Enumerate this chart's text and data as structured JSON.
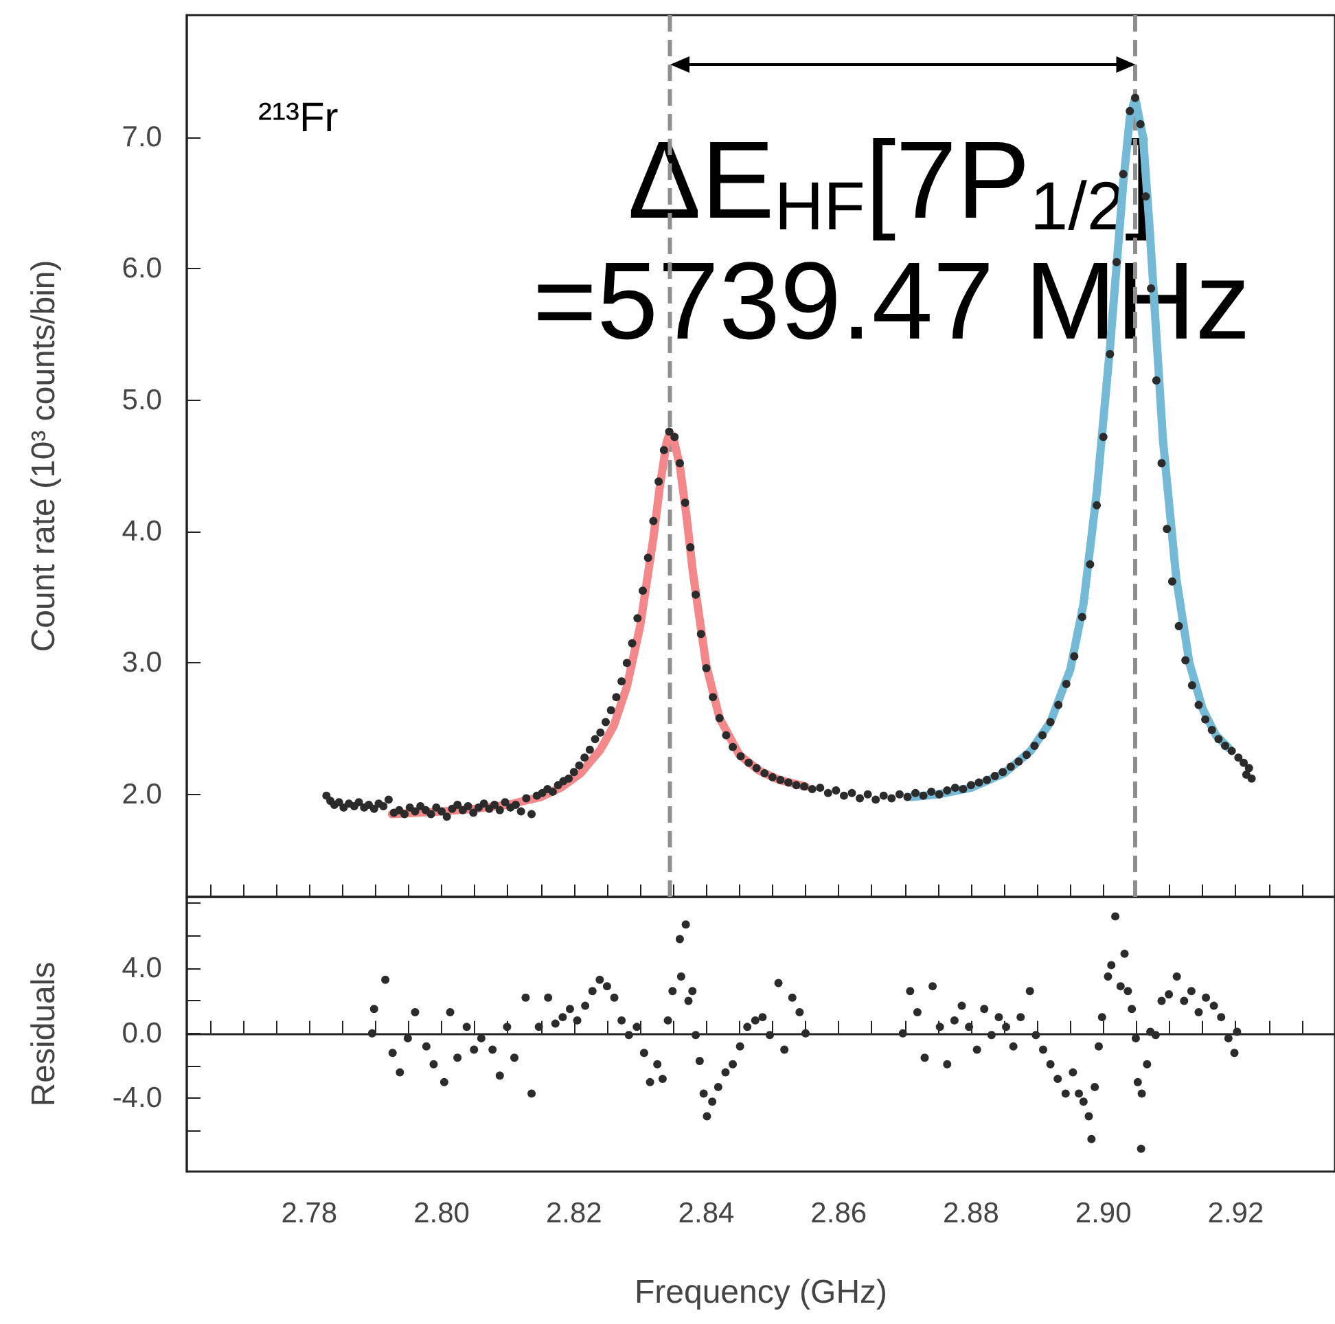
{
  "chart_data": [
    {
      "type": "scatter",
      "ylabel": "Count rate (10³ counts/bin)",
      "annotations": [
        "²¹³Fr",
        "ΔE$_{HF}$[7P$_{1/2}$]\n=5739.47 MHz"
      ],
      "xlim": [
        2.7615,
        2.935
      ],
      "ylim": [
        1.22,
        7.93
      ],
      "yticks": [
        {
          "value": 2,
          "label": "2.0"
        },
        {
          "value": 3,
          "label": "3.0"
        },
        {
          "value": 4,
          "label": "4.0"
        },
        {
          "value": 5,
          "label": "5.0"
        },
        {
          "value": 6,
          "label": "6.0"
        },
        {
          "value": 7,
          "label": "7.0"
        }
      ],
      "xticks": [
        {
          "value": 2.765,
          "label": null
        },
        {
          "value": 2.77,
          "label": null
        },
        {
          "value": 2.775,
          "label": null
        },
        {
          "value": 2.78,
          "label": null
        },
        {
          "value": 2.785,
          "label": null
        },
        {
          "value": 2.79,
          "label": null
        },
        {
          "value": 2.795,
          "label": null
        },
        {
          "value": 2.8,
          "label": null
        },
        {
          "value": 2.805,
          "label": null
        },
        {
          "value": 2.81,
          "label": null
        },
        {
          "value": 2.815,
          "label": null
        },
        {
          "value": 2.82,
          "label": null
        },
        {
          "value": 2.825,
          "label": null
        },
        {
          "value": 2.83,
          "label": null
        },
        {
          "value": 2.835,
          "label": null
        },
        {
          "value": 2.84,
          "label": null
        },
        {
          "value": 2.845,
          "label": null
        },
        {
          "value": 2.85,
          "label": null
        },
        {
          "value": 2.855,
          "label": null
        },
        {
          "value": 2.86,
          "label": null
        },
        {
          "value": 2.865,
          "label": null
        },
        {
          "value": 2.87,
          "label": null
        },
        {
          "value": 2.875,
          "label": null
        },
        {
          "value": 2.88,
          "label": null
        },
        {
          "value": 2.885,
          "label": null
        },
        {
          "value": 2.89,
          "label": null
        },
        {
          "value": 2.895,
          "label": null
        },
        {
          "value": 2.9,
          "label": null
        },
        {
          "value": 2.905,
          "label": null
        },
        {
          "value": 2.91,
          "label": null
        },
        {
          "value": 2.915,
          "label": null
        },
        {
          "value": 2.92,
          "label": null
        },
        {
          "value": 2.925,
          "label": null
        },
        {
          "value": 2.93,
          "label": null
        }
      ],
      "tick_labels": "y",
      "marker": "circle",
      "ref_lines": [
        {
          "axis": "x",
          "value": 2.8345,
          "color": "#8f8f8f",
          "line_style": "dashed"
        },
        {
          "axis": "x",
          "value": 2.9048,
          "color": "#8f8f8f",
          "line_style": "dashed"
        }
      ],
      "series": [
        {
          "type": "line",
          "color": "#f4878a",
          "marker": "none",
          "x": [
            2.7925,
            2.8,
            2.805,
            2.81,
            2.815,
            2.818,
            2.821,
            2.824,
            2.826,
            2.828,
            2.83,
            2.832,
            2.833,
            2.834,
            2.8345,
            2.835,
            2.836,
            2.837,
            2.838,
            2.84,
            2.842,
            2.845,
            2.848,
            2.851,
            2.855
          ],
          "values": [
            1.85,
            1.87,
            1.89,
            1.92,
            1.98,
            2.05,
            2.16,
            2.34,
            2.52,
            2.82,
            3.28,
            3.95,
            4.35,
            4.68,
            4.75,
            4.72,
            4.5,
            4.12,
            3.68,
            2.98,
            2.58,
            2.3,
            2.18,
            2.11,
            2.06
          ]
        },
        {
          "type": "line",
          "color": "#74b9d6",
          "marker": "none",
          "x": [
            2.871,
            2.875,
            2.88,
            2.885,
            2.889,
            2.892,
            2.895,
            2.897,
            2.899,
            2.901,
            2.903,
            2.904,
            2.9048,
            2.906,
            2.907,
            2.909,
            2.911,
            2.913,
            2.915,
            2.917,
            2.919
          ],
          "values": [
            1.98,
            2.0,
            2.05,
            2.16,
            2.33,
            2.55,
            2.95,
            3.45,
            4.3,
            5.4,
            6.65,
            7.15,
            7.3,
            7.0,
            6.3,
            4.7,
            3.65,
            3.0,
            2.65,
            2.45,
            2.35
          ]
        },
        {
          "color": "#2b2b2b",
          "x": [
            2.7826,
            2.7832,
            2.7838,
            2.7845,
            2.7852,
            2.786,
            2.7868,
            2.7875,
            2.7883,
            2.789,
            2.7898,
            2.7905,
            2.7912,
            2.792,
            2.7928,
            2.7936,
            2.7944,
            2.7952,
            2.796,
            2.7968,
            2.7976,
            2.7984,
            2.7992,
            2.8,
            2.8008,
            2.8016,
            2.8024,
            2.8032,
            2.804,
            2.8048,
            2.8056,
            2.8064,
            2.8072,
            2.808,
            2.8088,
            2.8096,
            2.8104,
            2.8112,
            2.812,
            2.8128,
            2.8136,
            2.8144,
            2.8152,
            2.816,
            2.8168,
            2.8176,
            2.8184,
            2.8192,
            2.82,
            2.8208,
            2.8216,
            2.8224,
            2.8232,
            2.824,
            2.8248,
            2.8256,
            2.8264,
            2.8272,
            2.828,
            2.8288,
            2.8296,
            2.8304,
            2.8312,
            2.832,
            2.8328,
            2.8336,
            2.8344,
            2.8352,
            2.836,
            2.8368,
            2.8376,
            2.8384,
            2.8392,
            2.84,
            2.841,
            2.842,
            2.843,
            2.844,
            2.8452,
            2.8464,
            2.8476,
            2.8488,
            2.85,
            2.8512,
            2.8524,
            2.8536,
            2.8548,
            2.856,
            2.8572,
            2.8584,
            2.8596,
            2.8608,
            2.862,
            2.8632,
            2.8644,
            2.8656,
            2.8668,
            2.868,
            2.8692,
            2.8704,
            2.8716,
            2.8728,
            2.874,
            2.8752,
            2.8764,
            2.8776,
            2.8788,
            2.88,
            2.8812,
            2.8824,
            2.8836,
            2.8848,
            2.886,
            2.8872,
            2.8884,
            2.8896,
            2.8908,
            2.892,
            2.8932,
            2.8944,
            2.8956,
            2.8968,
            2.898,
            2.899,
            2.9,
            2.901,
            2.902,
            2.903,
            2.904,
            2.9048,
            2.9056,
            2.9064,
            2.9072,
            2.908,
            2.9088,
            2.9096,
            2.9104,
            2.9114,
            2.9124,
            2.9134,
            2.9144,
            2.9154,
            2.9164,
            2.9174,
            2.9184,
            2.9194,
            2.9204,
            2.9212,
            2.9216,
            2.922,
            2.9224
          ],
          "values": [
            1.99,
            1.95,
            1.92,
            1.94,
            1.9,
            1.93,
            1.91,
            1.94,
            1.9,
            1.92,
            1.89,
            1.93,
            1.91,
            1.96,
            1.86,
            1.88,
            1.85,
            1.9,
            1.87,
            1.91,
            1.88,
            1.85,
            1.9,
            1.87,
            1.83,
            1.89,
            1.92,
            1.88,
            1.91,
            1.86,
            1.9,
            1.93,
            1.89,
            1.92,
            1.88,
            1.94,
            1.9,
            1.92,
            1.87,
            1.97,
            1.85,
            1.99,
            2.01,
            2.04,
            2.02,
            2.07,
            2.1,
            2.12,
            2.17,
            2.22,
            2.28,
            2.34,
            2.42,
            2.47,
            2.55,
            2.64,
            2.74,
            2.86,
            3.0,
            3.15,
            3.34,
            3.55,
            3.8,
            4.08,
            4.38,
            4.62,
            4.76,
            4.72,
            4.52,
            4.22,
            3.88,
            3.52,
            3.22,
            2.96,
            2.74,
            2.58,
            2.45,
            2.36,
            2.29,
            2.24,
            2.2,
            2.16,
            2.13,
            2.11,
            2.09,
            2.07,
            2.06,
            2.04,
            2.05,
            2.01,
            2.03,
            1.99,
            2.01,
            1.97,
            2.0,
            1.96,
            1.99,
            1.97,
            2.0,
            1.98,
            2.01,
            1.99,
            2.02,
            2.0,
            2.03,
            2.05,
            2.04,
            2.07,
            2.09,
            2.11,
            2.14,
            2.17,
            2.21,
            2.25,
            2.3,
            2.37,
            2.45,
            2.55,
            2.68,
            2.84,
            3.05,
            3.35,
            3.75,
            4.2,
            4.72,
            5.35,
            6.05,
            6.72,
            7.2,
            7.3,
            7.1,
            6.55,
            5.85,
            5.15,
            4.52,
            4.02,
            3.62,
            3.28,
            3.02,
            2.83,
            2.68,
            2.57,
            2.49,
            2.42,
            2.37,
            2.33,
            2.28,
            2.24,
            2.15,
            2.2,
            2.12
          ]
        }
      ]
    },
    {
      "type": "scatter",
      "xlabel": "Frequency (GHz)",
      "ylabel": "Residuals",
      "marker": "circle",
      "xlim": [
        2.7615,
        2.935
      ],
      "ylim": [
        -8.5,
        8.4
      ],
      "yticks": [
        {
          "value": -6,
          "label": null
        },
        {
          "value": -4,
          "label": "-4.0"
        },
        {
          "value": -2,
          "label": null
        },
        {
          "value": 0,
          "label": "0.0"
        },
        {
          "value": 2,
          "label": null
        },
        {
          "value": 4,
          "label": "4.0"
        },
        {
          "value": 6,
          "label": null
        },
        {
          "value": 8,
          "label": null
        }
      ],
      "xticks": [
        {
          "value": 2.765,
          "label": null
        },
        {
          "value": 2.77,
          "label": null
        },
        {
          "value": 2.775,
          "label": null
        },
        2.78,
        {
          "value": 2.785,
          "label": null
        },
        {
          "value": 2.79,
          "label": null
        },
        {
          "value": 2.795,
          "label": null
        },
        {
          "value": 2.8,
          "label": "2.80"
        },
        {
          "value": 2.805,
          "label": null
        },
        {
          "value": 2.81,
          "label": null
        },
        {
          "value": 2.815,
          "label": null
        },
        2.82,
        {
          "value": 2.825,
          "label": null
        },
        {
          "value": 2.83,
          "label": null
        },
        {
          "value": 2.835,
          "label": null
        },
        2.84,
        {
          "value": 2.845,
          "label": null
        },
        {
          "value": 2.85,
          "label": null
        },
        {
          "value": 2.855,
          "label": null
        },
        2.86,
        {
          "value": 2.865,
          "label": null
        },
        {
          "value": 2.87,
          "label": null
        },
        {
          "value": 2.875,
          "label": null
        },
        2.88,
        {
          "value": 2.885,
          "label": null
        },
        {
          "value": 2.89,
          "label": null
        },
        {
          "value": 2.895,
          "label": null
        },
        {
          "value": 2.9,
          "label": "2.90"
        },
        {
          "value": 2.905,
          "label": null
        },
        {
          "value": 2.91,
          "label": null
        },
        {
          "value": 2.915,
          "label": null
        },
        2.92,
        {
          "value": 2.925,
          "label": null
        },
        {
          "value": 2.93,
          "label": null
        }
      ],
      "series": [
        {
          "color": "#2b2b2b",
          "x": [
            2.7895,
            2.7898,
            2.7915,
            2.7926,
            2.7937,
            2.7949,
            2.796,
            2.7977,
            2.7988,
            2.8004,
            2.8013,
            2.8024,
            2.8038,
            2.8049,
            2.806,
            2.8077,
            2.8088,
            2.8099,
            2.811,
            2.8127,
            2.8136,
            2.8147,
            2.8161,
            2.8172,
            2.8183,
            2.8194,
            2.8205,
            2.8217,
            2.8228,
            2.8239,
            2.825,
            2.8261,
            2.8272,
            2.8283,
            2.8295,
            2.8306,
            2.8315,
            2.8326,
            2.8334,
            2.8342,
            2.8349,
            2.836,
            2.8369,
            2.8362,
            2.8373,
            2.8379,
            2.8384,
            2.839,
            2.8396,
            2.8401,
            2.8409,
            2.8418,
            2.8429,
            2.844,
            2.8451,
            2.8462,
            2.8474,
            2.8485,
            2.8496,
            2.8509,
            2.8518,
            2.853,
            2.8541,
            2.855,
            2.8697,
            2.8708,
            2.8719,
            2.873,
            2.8742,
            2.8753,
            2.8764,
            2.8775,
            2.8786,
            2.8797,
            2.8809,
            2.882,
            2.8831,
            2.8842,
            2.8853,
            2.8864,
            2.8875,
            2.8889,
            2.8898,
            2.8909,
            2.892,
            2.8931,
            2.8943,
            2.8954,
            2.8963,
            2.897,
            2.8978,
            2.8982,
            2.8987,
            2.8993,
            2.8998,
            2.9007,
            2.9012,
            2.9018,
            2.9026,
            2.9032,
            2.9037,
            2.9043,
            2.9049,
            2.9052,
            2.9058,
            2.9057,
            2.9066,
            2.9071,
            2.9079,
            2.9088,
            2.9099,
            2.9111,
            2.9122,
            2.9133,
            2.9144,
            2.9155,
            2.9167,
            2.9178,
            2.9189,
            2.9198,
            2.9202
          ],
          "values": [
            0,
            1.5,
            3.3,
            -1.2,
            -2.4,
            -0.3,
            1.3,
            -0.8,
            -1.9,
            -3.0,
            1.3,
            -1.5,
            0.4,
            -1.0,
            -0.3,
            -1.0,
            -2.6,
            0.4,
            -1.5,
            2.2,
            -3.7,
            0.4,
            2.2,
            0.6,
            1.0,
            1.5,
            0.8,
            1.7,
            2.6,
            3.3,
            2.9,
            2.2,
            0.8,
            -0.1,
            0.4,
            -1.2,
            -3.0,
            -1.9,
            -2.8,
            0.8,
            2.6,
            5.8,
            6.7,
            3.5,
            2.0,
            2.6,
            -0.1,
            -1.7,
            -3.7,
            -5.1,
            -4.2,
            -3.3,
            -2.4,
            -1.9,
            -0.8,
            0.4,
            0.8,
            1.0,
            -0.1,
            3.1,
            -1.0,
            2.2,
            1.3,
            0,
            0,
            2.6,
            1.3,
            -1.5,
            2.9,
            0.4,
            -1.9,
            0.8,
            1.7,
            0.4,
            -1.0,
            1.5,
            -0.1,
            1.0,
            0.4,
            -0.8,
            1.0,
            2.6,
            -0.1,
            -1.0,
            -1.9,
            -2.8,
            -3.7,
            -2.4,
            -3.7,
            -4.2,
            -5.1,
            -6.5,
            -3.3,
            -0.8,
            1.0,
            3.5,
            4.2,
            7.2,
            2.9,
            4.9,
            2.6,
            1.5,
            -0.3,
            -3.0,
            -3.7,
            -7.1,
            -1.9,
            0.1,
            -0.1,
            2.0,
            2.4,
            3.5,
            2.0,
            2.6,
            1.3,
            2.2,
            1.7,
            1.0,
            -0.3,
            -1.2,
            0.1
          ]
        }
      ]
    }
  ]
}
